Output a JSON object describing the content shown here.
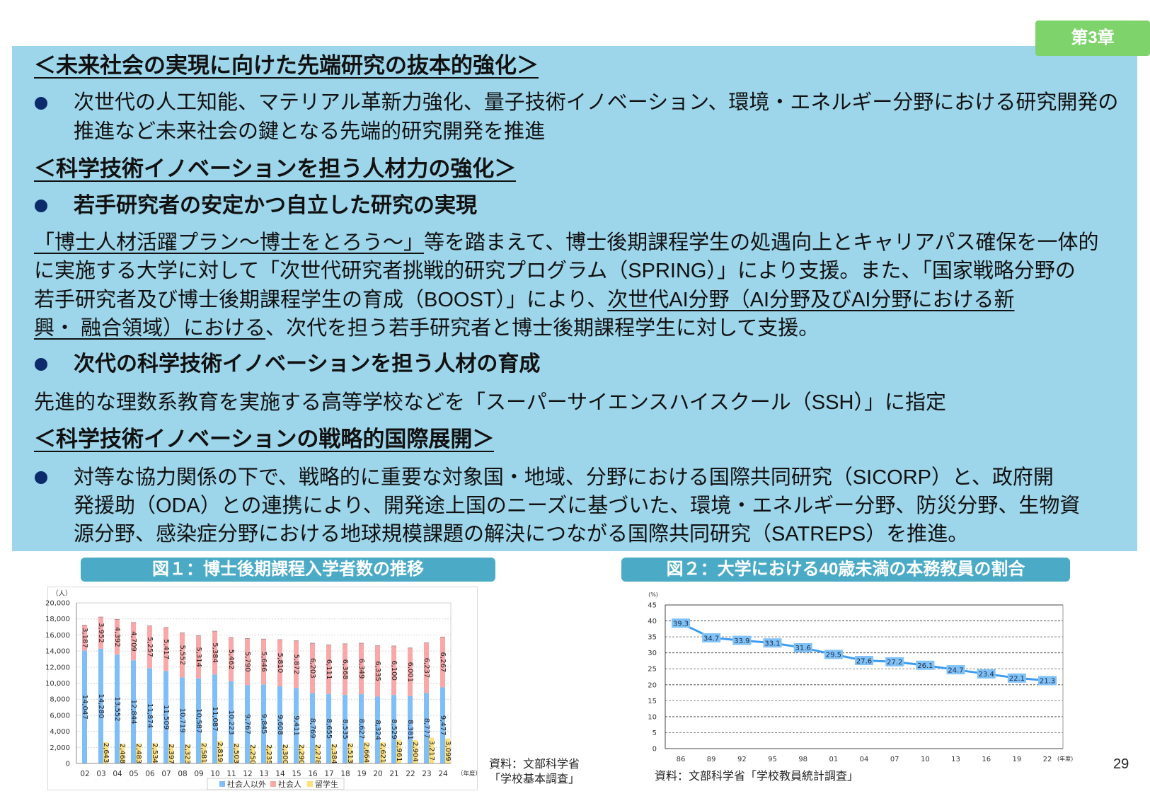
{
  "header": {
    "chapter_badge": "第3章"
  },
  "sections": [
    {
      "heading": "＜未来社会の実現に向けた先端研究の抜本的強化＞",
      "bullets": [
        {
          "lines": [
            "次世代の人工知能、マテリアル革新力強化、量子技術イノベーション、環境・エネルギー分野における研究開発の",
            "推進など未来社会の鍵となる先端的研究開発を推進"
          ]
        }
      ]
    },
    {
      "heading": "＜科学技術イノベーションを担う人材力の強化＞",
      "items": [
        {
          "bullet": "若手研究者の安定かつ自立した研究の実現",
          "body_lines": [
            [
              {
                "text": "「博士人材活躍プラン～博士をとろう～」",
                "underline": true
              },
              {
                "text": "等を踏まえて、博士後期課程学生の処遇向上とキャリアパス確保を一体的",
                "underline": false
              }
            ],
            [
              {
                "text": "に実施する大学に対して「次世代研究者挑戦的研究プログラム（SPRING）」により支援。また、「国家戦略分野の",
                "underline": false
              }
            ],
            [
              {
                "text": "若手研究者及び博士後期課程学生の育成（BOOST）」により、",
                "underline": false
              },
              {
                "text": "次世代AI分野（AI分野及びAI分野における新",
                "underline": true
              }
            ],
            [
              {
                "text": "興・ 融合領域）における",
                "underline": true
              },
              {
                "text": "、次代を担う若手研究者と博士後期課程学生に対して支援。",
                "underline": false
              }
            ]
          ]
        },
        {
          "bullet": "次代の科学技術イノベーションを担う人材の育成",
          "body_lines": [
            [
              {
                "text": "先進的な理数系教育を実施する高等学校などを「スーパーサイエンスハイスクール（SSH）」に指定",
                "underline": false
              }
            ]
          ]
        }
      ]
    },
    {
      "heading": "＜科学技術イノベーションの戦略的国際展開＞",
      "bullets": [
        {
          "lines": [
            "対等な協力関係の下で、戦略的に重要な対象国・地域、分野における国際共同研究（SICORP）と、政府開",
            "発援助（ODA）との連携により、開発途上国のニーズに基づいた、環境・エネルギー分野、防災分野、生物資",
            "源分野、感染症分野における地球規模課題の解決につながる国際共同研究（SATREPS）を推進。"
          ]
        }
      ]
    }
  ],
  "figures": [
    {
      "title": "図１：博士後期課程入学者数の推移",
      "source_lines": [
        "資料：文部科学省",
        "「学校基本調査」"
      ]
    },
    {
      "title": "図２：大学における40歳未満の本務教員の割合",
      "source_lines": [
        "資料：文部科学省「学校教員統計調査」"
      ]
    }
  ],
  "page_number": "29",
  "theme": {
    "panel": "#9dd5ea",
    "badge": "#7ed46b",
    "figure_title_bar": "#4babc6",
    "bullet": "#0b2b6b"
  },
  "chart_data": [
    {
      "type": "bar",
      "title": "図１：博士後期課程入学者数の推移",
      "categories": [
        "02",
        "03",
        "04",
        "05",
        "06",
        "07",
        "08",
        "09",
        "10",
        "11",
        "12",
        "13",
        "14",
        "15",
        "16",
        "17",
        "18",
        "19",
        "20",
        "21",
        "22",
        "23",
        "24"
      ],
      "series": [
        {
          "name": "社会人以外",
          "color": "#80bef8",
          "stack": "main",
          "values": [
            14047,
            14280,
            13552,
            12844,
            11874,
            11509,
            10719,
            10587,
            11087,
            10223,
            9767,
            9845,
            9608,
            9411,
            8769,
            8655,
            8535,
            8627,
            8324,
            8529,
            8381,
            8777,
            9477
          ]
        },
        {
          "name": "社会人",
          "color": "#f9a8aa",
          "stack": "main",
          "values": [
            3187,
            3952,
            4392,
            4709,
            5257,
            5417,
            5552,
            5314,
            5384,
            5462,
            5790,
            5646,
            5810,
            5872,
            6203,
            6111,
            6368,
            6349,
            6335,
            6100,
            6001,
            6237,
            6267
          ]
        },
        {
          "name": "留学生",
          "color": "#ffe07a",
          "stack": "side",
          "values": [
            null,
            2643,
            2468,
            2483,
            2534,
            2397,
            2323,
            2581,
            2819,
            2503,
            2250,
            2235,
            2300,
            2290,
            2278,
            2384,
            2513,
            2664,
            2621,
            2961,
            2904,
            3217,
            3099
          ]
        }
      ],
      "xlabel": "（年度）",
      "ylabel": "（人）",
      "ylim": [
        0,
        20000
      ],
      "yticks": [
        0,
        2000,
        4000,
        6000,
        8000,
        10000,
        12000,
        14000,
        16000,
        18000,
        20000
      ],
      "ytick_labels": [
        "0",
        "2,000",
        "4,000",
        "6,000",
        "8,000",
        "10,000",
        "12,000",
        "14,000",
        "16,000",
        "18,000",
        "20,000"
      ],
      "grid": true,
      "data_labels": true,
      "legend_position": "bottom"
    },
    {
      "type": "line",
      "title": "図２：大学における40歳未満の本務教員の割合",
      "categories": [
        "86",
        "89",
        "92",
        "95",
        "98",
        "01",
        "04",
        "07",
        "10",
        "13",
        "16",
        "19",
        "22"
      ],
      "series": [
        {
          "color": "#3d9cf0",
          "label_color": "#80c2f7",
          "values": [
            39.3,
            34.7,
            33.9,
            33.1,
            31.6,
            29.5,
            27.6,
            27.2,
            26.1,
            24.7,
            23.4,
            22.1,
            21.3
          ]
        }
      ],
      "xlabel": "(年度)",
      "ylabel": "(%)",
      "ylim": [
        0,
        45
      ],
      "yticks": [
        0,
        5,
        10,
        15,
        20,
        25,
        30,
        35,
        40,
        45
      ],
      "ytick_labels": [
        "0",
        "5",
        "10",
        "15",
        "20",
        "25",
        "30",
        "35",
        "40",
        "45"
      ],
      "grid": true,
      "data_labels": true,
      "legend_position": "none"
    }
  ]
}
